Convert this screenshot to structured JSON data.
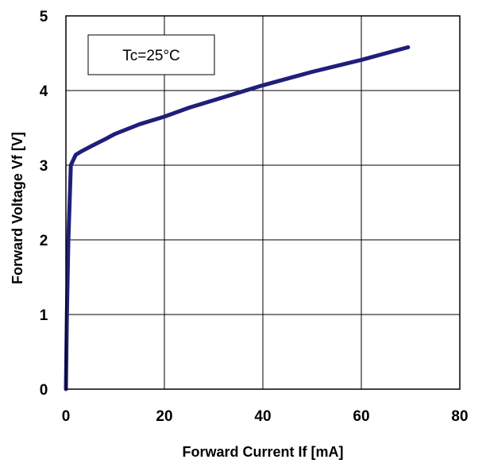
{
  "chart_data": {
    "type": "line",
    "xlabel": "Forward Current If [mA]",
    "ylabel": "Forward Voltage Vf [V]",
    "xlim": [
      0,
      80
    ],
    "ylim": [
      0,
      5
    ],
    "x_ticks": [
      "0",
      "20",
      "40",
      "60",
      "80"
    ],
    "y_ticks": [
      "0",
      "1",
      "2",
      "3",
      "4",
      "5"
    ],
    "grid": true,
    "annotation": "Tc=25°C",
    "line_color": "#1f1f7a",
    "series": [
      {
        "x": [
          0,
          0.2,
          0.5,
          1.0,
          2,
          3,
          5,
          8,
          10,
          15,
          20,
          25,
          30,
          35,
          40,
          45,
          50,
          55,
          60,
          65,
          69.5
        ],
        "y": [
          0,
          1.0,
          2.0,
          3.0,
          3.14,
          3.18,
          3.25,
          3.35,
          3.42,
          3.55,
          3.65,
          3.77,
          3.87,
          3.97,
          4.07,
          4.16,
          4.25,
          4.33,
          4.41,
          4.5,
          4.58
        ]
      }
    ]
  }
}
